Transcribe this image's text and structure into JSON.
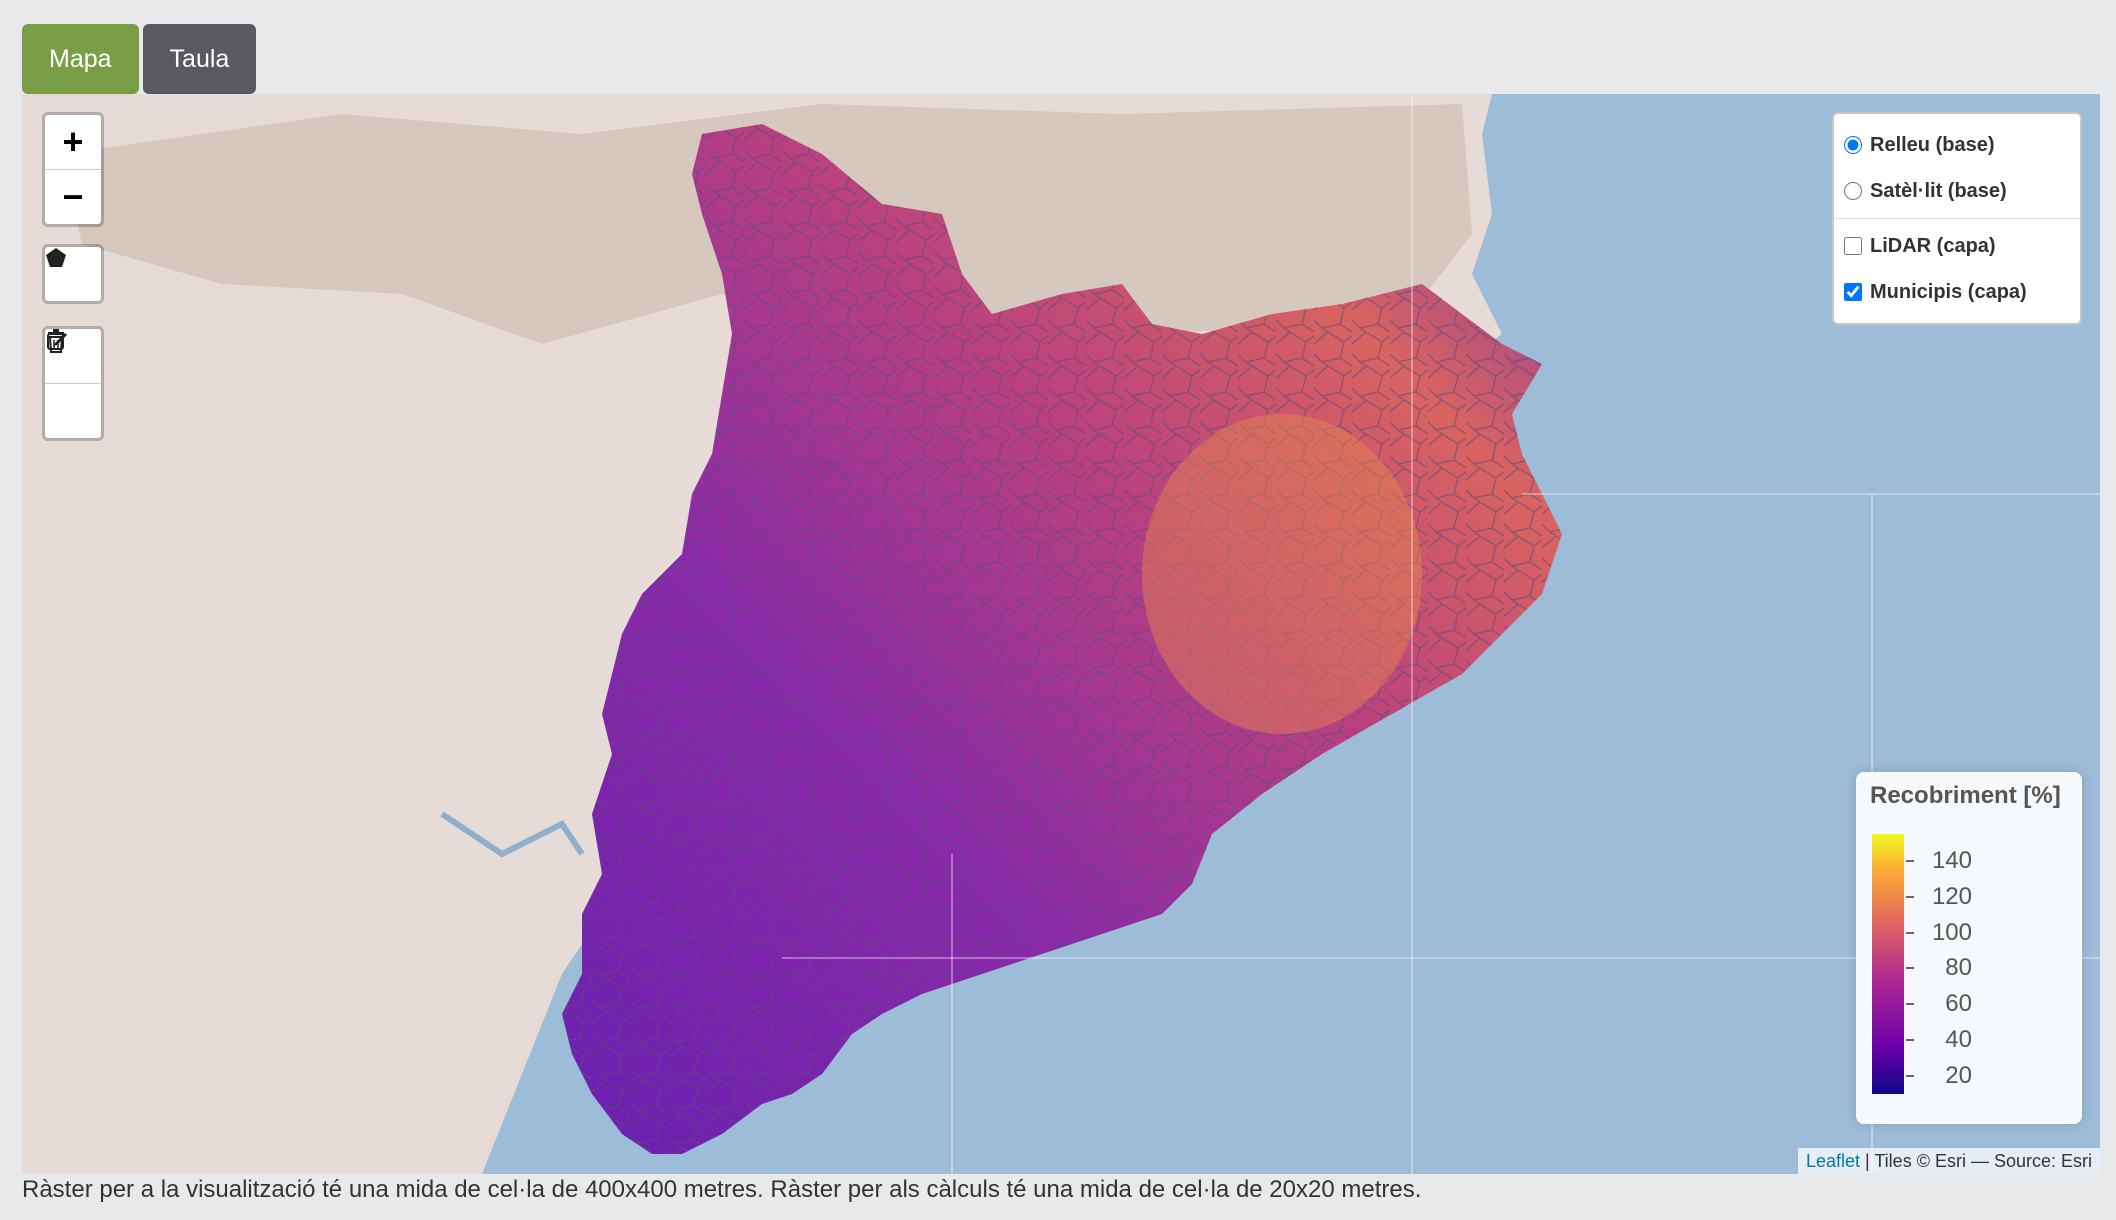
{
  "tabs": [
    {
      "label": "Mapa",
      "active": true
    },
    {
      "label": "Taula",
      "active": false
    }
  ],
  "map": {
    "controls": {
      "zoom_in": "+",
      "zoom_out": "−",
      "draw_polygon_icon": "pentagon-icon",
      "edit_icon": "edit-icon",
      "delete_icon": "trash-icon"
    },
    "layers": {
      "base": [
        {
          "label": "Relleu (base)",
          "checked": true
        },
        {
          "label": "Satèl·lit (base)",
          "checked": false
        }
      ],
      "overlays": [
        {
          "label": "LiDAR (capa)",
          "checked": false
        },
        {
          "label": "Municipis (capa)",
          "checked": true
        }
      ]
    },
    "legend": {
      "title": "Recobriment [%]",
      "min": 10,
      "max": 155,
      "ticks": [
        140,
        120,
        100,
        80,
        60,
        40,
        20
      ]
    },
    "attribution": {
      "link": "Leaflet",
      "text": " | Tiles © Esri — Source: Esri"
    },
    "colors": {
      "sea": "#9dbcd8",
      "land": "#e6dbd6",
      "choropleth_low": "#6a00a8",
      "choropleth_high": "#e98a4e"
    }
  },
  "caption": "Ràster per a la visualització té una mida de cel·la de 400x400 metres. Ràster per als càlculs té una mida de cel·la de 20x20 metres."
}
